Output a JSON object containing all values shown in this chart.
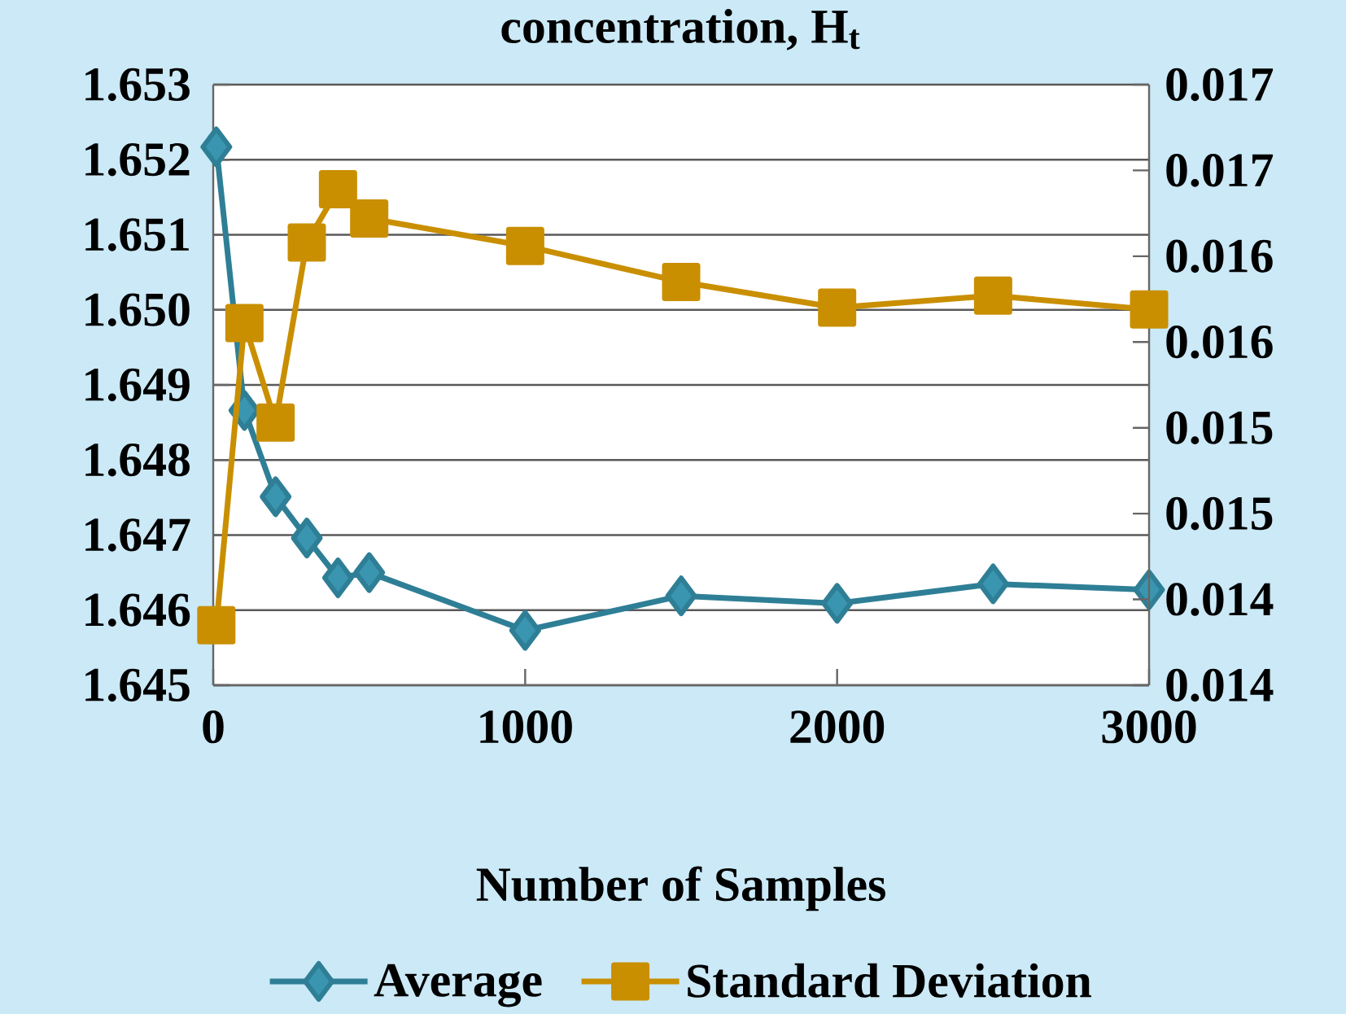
{
  "chart_data": {
    "type": "line",
    "title": "concentration, H$_{t}$",
    "xlabel": "Number of Samples",
    "x": [
      10,
      100,
      200,
      300,
      400,
      500,
      1000,
      1500,
      2000,
      2500,
      3000
    ],
    "series": [
      {
        "name": "Average",
        "color": "#2e7f96",
        "marker": "diamond",
        "values": [
          1.65217,
          1.64866,
          1.64751,
          1.64696,
          1.64643,
          1.6465,
          1.64573,
          1.64619,
          1.64609,
          1.64635,
          1.64627
        ]
      },
      {
        "name": "Standard Deviation",
        "color": "#c98f00",
        "marker": "square",
        "axis": "y2",
        "values": [
          0.01415,
          0.01591,
          0.01533,
          0.01638,
          0.01669,
          0.01652,
          0.01636,
          0.01615,
          0.016,
          0.01607,
          0.01599
        ]
      }
    ],
    "xlim": [
      0,
      3000
    ],
    "xticks": [
      0,
      1000,
      2000,
      3000
    ],
    "ylim": [
      1.645,
      1.653
    ],
    "yticks": [
      1.645,
      1.646,
      1.647,
      1.648,
      1.649,
      {
        "value": 1.65,
        "label": "1.650"
      },
      1.651,
      1.652,
      1.653
    ],
    "y2lim": [
      0.0138,
      0.0173
    ],
    "y2ticks": [
      {
        "value": 0.0138,
        "label": "0.014"
      },
      {
        "value": 0.0143,
        "label": "0.014"
      },
      {
        "value": 0.0148,
        "label": "0.015"
      },
      {
        "value": 0.0153,
        "label": "0.015"
      },
      {
        "value": 0.0158,
        "label": "0.016"
      },
      {
        "value": 0.0163,
        "label": "0.016"
      },
      {
        "value": 0.0168,
        "label": "0.017"
      },
      {
        "value": 0.0173,
        "label": "0.017"
      }
    ],
    "grid": "y",
    "legend": "bottom",
    "line_style": "solid"
  }
}
